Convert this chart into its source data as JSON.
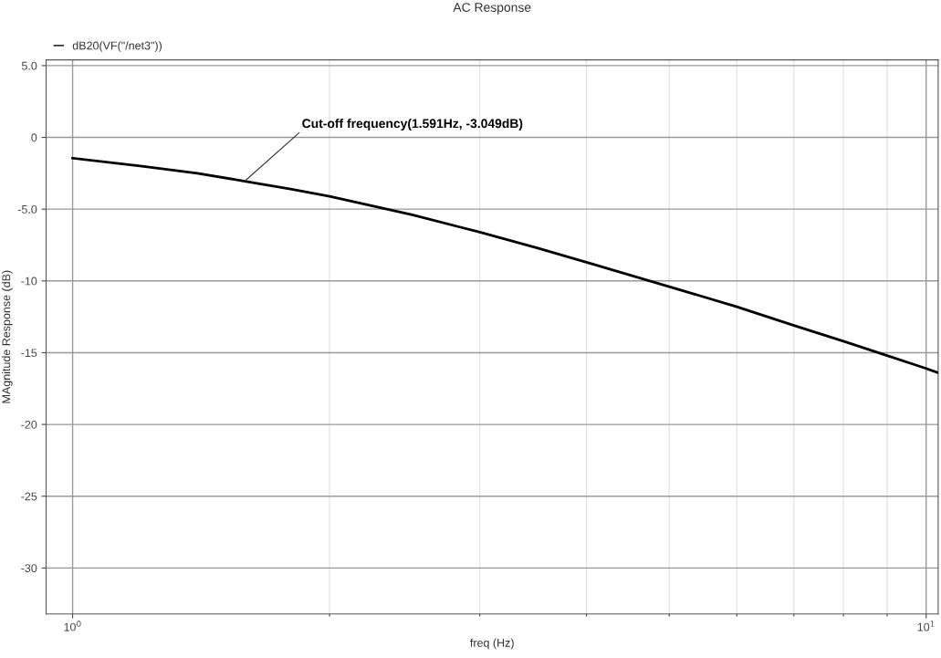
{
  "chart_data": {
    "type": "line",
    "title": "AC Response",
    "xlabel": "freq (Hz)",
    "ylabel": "MAgnitude Response (dB)",
    "log": "x",
    "xlim": [
      0.931,
      10.33
    ],
    "ylim": [
      -33.2,
      5.4
    ],
    "xticks": [
      {
        "value": 1,
        "label": "10$^{0}$"
      },
      {
        "value": 10,
        "label": "10$^{1}$"
      }
    ],
    "yticks": [
      {
        "value": 5,
        "label": "5.0"
      },
      0,
      {
        "value": -5,
        "label": "-5.0"
      },
      -10,
      -15,
      -20,
      -25,
      -30
    ],
    "grid": true,
    "legend": "top left",
    "marker": "none",
    "line_style": "solid",
    "annotations": [
      {
        "text": "Cut-off frequency(1.591Hz, -3.049dB)",
        "x": 1.591,
        "y": -3.049
      }
    ],
    "series": [
      {
        "name": "dB20(VF(\"/net3\"))",
        "color": "#000000",
        "x": [
          1,
          1.2,
          1.4,
          1.591,
          1.8,
          2,
          2.5,
          3,
          3.5,
          4,
          5,
          6,
          7,
          8,
          9,
          10,
          10.33
        ],
        "values": [
          -1.45,
          -2.0,
          -2.5,
          -3.05,
          -3.6,
          -4.1,
          -5.4,
          -6.6,
          -7.7,
          -8.7,
          -10.4,
          -11.8,
          -13.1,
          -14.2,
          -15.2,
          -16.1,
          -16.4
        ]
      }
    ]
  }
}
